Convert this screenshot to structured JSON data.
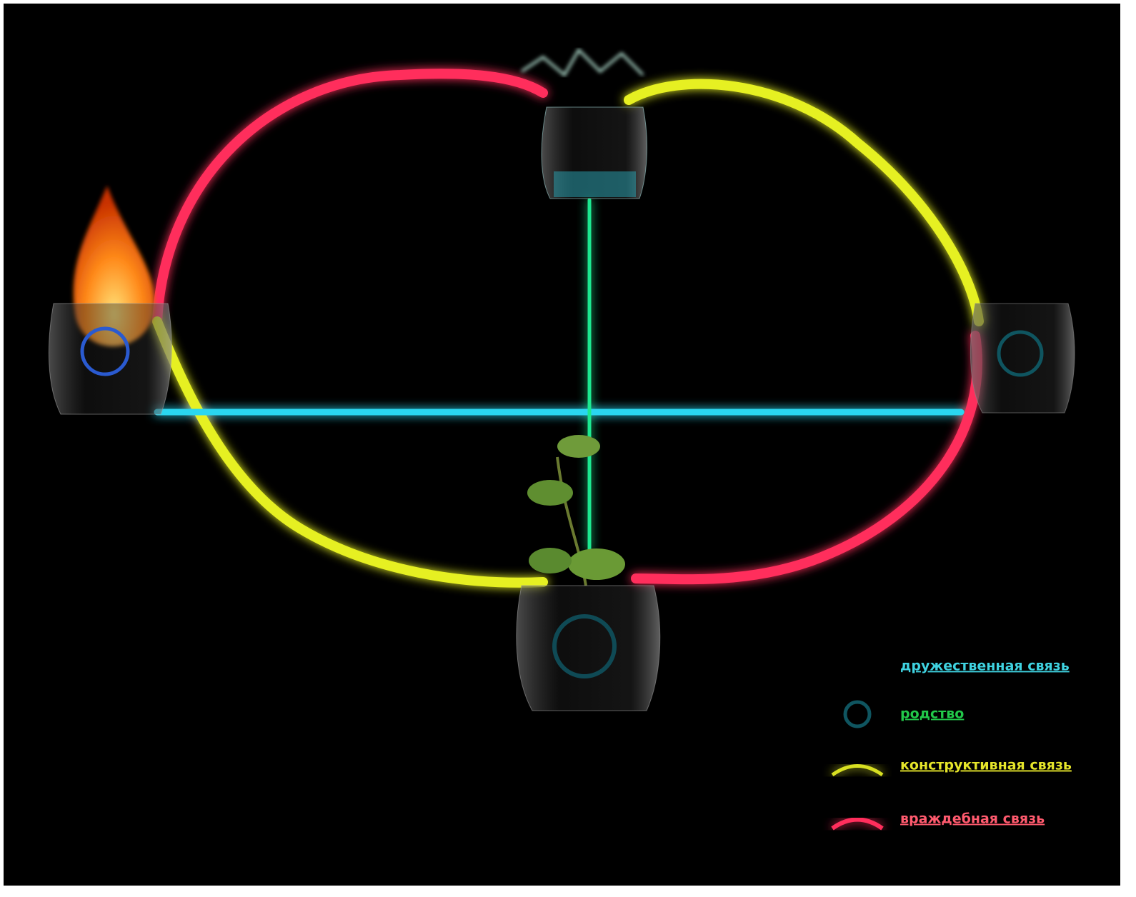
{
  "legend": [
    "дружественная связь",
    "родство",
    "конструктивная связь",
    "враждебная связь"
  ]
}
